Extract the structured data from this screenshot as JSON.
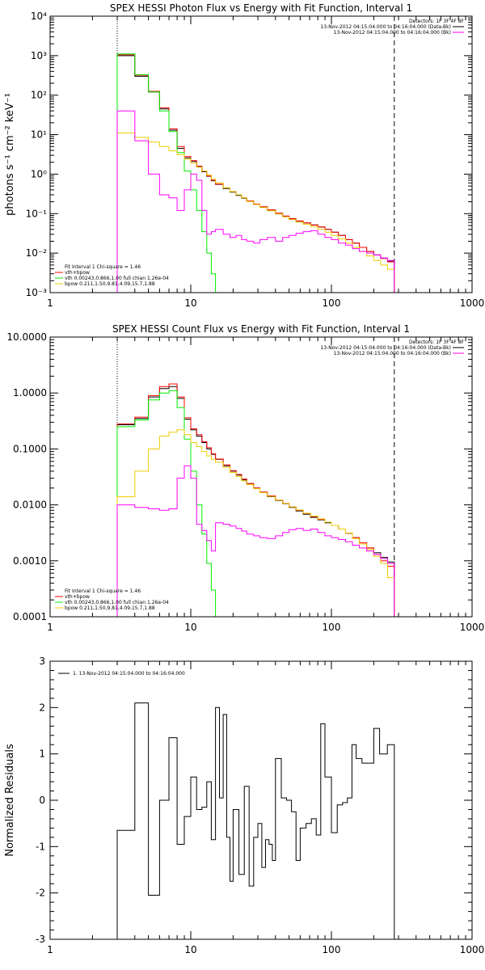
{
  "colors": {
    "total": "#ff0000",
    "vth": "#00ee00",
    "bpow": "#eecc00",
    "data": "#000000",
    "background": "#ff00ff"
  },
  "chart_data": [
    {
      "type": "line",
      "title": "SPEX HESSI Photon Flux vs Energy with Fit Function, Interval 1",
      "ylabel": "photons s⁻¹ cm⁻² keV⁻¹",
      "xlabel": "",
      "xscale": "log",
      "yscale": "log",
      "xlim": [
        1,
        1000
      ],
      "ylim": [
        0.001,
        10000
      ],
      "xticks": [
        "1",
        "10",
        "100",
        "1000"
      ],
      "yticks": [
        "10⁻³",
        "10⁻²",
        "10⁻¹",
        "10⁰",
        "10¹",
        "10²",
        "10³",
        "10⁴"
      ],
      "fit_range": [
        3,
        280
      ],
      "detector_text": "Detectors: 1F 3F 4F 8F",
      "legend_right": [
        {
          "label": "13-Nov-2012 04:15:04.000 to 04:16:04.000 (Data-Bk)",
          "series": "data"
        },
        {
          "label": "13-Nov-2012 04:15:04.000 to 04:16:04.000 (Bk)",
          "series": "background"
        }
      ],
      "legend_left": [
        {
          "label": "Fit Interval 1    Chi-square = 1.46",
          "series": null
        },
        {
          "label": "vth+bpow",
          "series": "total"
        },
        {
          "label": "vth 0.00243,0.866,1.00  full chian 1.26e-04",
          "series": "vth"
        },
        {
          "label": "bpow 0.211,1.50,9.81,4.09,15.7,1.88",
          "series": "bpow"
        }
      ],
      "energy_edges": [
        3,
        4,
        5,
        6,
        7,
        8,
        9,
        10,
        11,
        12,
        13,
        14,
        15,
        17,
        19,
        21,
        23,
        25,
        28,
        31,
        35,
        40,
        45,
        50,
        56,
        63,
        71,
        80,
        90,
        100,
        112,
        126,
        141,
        158,
        178,
        200,
        224,
        251,
        280
      ],
      "series": [
        {
          "key": "data",
          "values": [
            1000,
            300,
            120,
            45,
            13,
            4.5,
            2.6,
            2.1,
            1.55,
            1.15,
            0.88,
            0.68,
            0.55,
            0.43,
            0.35,
            0.29,
            0.245,
            0.205,
            0.17,
            0.145,
            0.12,
            0.1,
            0.085,
            0.073,
            0.064,
            0.058,
            0.052,
            0.046,
            0.04,
            0.034,
            0.028,
            0.022,
            0.018,
            0.014,
            0.011,
            0.009,
            0.0075,
            0.0063
          ]
        },
        {
          "key": "total",
          "values": [
            1050,
            320,
            125,
            48,
            14,
            5,
            2.8,
            2.2,
            1.6,
            1.2,
            0.9,
            0.7,
            0.56,
            0.45,
            0.36,
            0.3,
            0.25,
            0.21,
            0.175,
            0.15,
            0.125,
            0.103,
            0.087,
            0.075,
            0.065,
            0.058,
            0.052,
            0.046,
            0.04,
            0.034,
            0.028,
            0.022,
            0.018,
            0.014,
            0.011,
            0.009,
            0.0073,
            0.006
          ]
        },
        {
          "key": "vth",
          "values": [
            1100,
            330,
            120,
            40,
            12,
            3.5,
            1.2,
            0.4,
            0.12,
            0.035,
            0.01,
            0.003,
            0.001,
            0.0005
          ]
        },
        {
          "key": "bpow",
          "values": [
            11,
            8.5,
            6.5,
            5,
            3.9,
            3.1,
            2.4,
            1.9,
            1.5,
            1.2,
            0.95,
            0.75,
            0.6,
            0.45,
            0.36,
            0.3,
            0.25,
            0.205,
            0.17,
            0.142,
            0.118,
            0.098,
            0.083,
            0.071,
            0.061,
            0.054,
            0.047,
            0.04,
            0.034,
            0.028,
            0.023,
            0.018,
            0.014,
            0.011,
            0.0085,
            0.0065,
            0.005,
            0.0039
          ]
        },
        {
          "key": "background",
          "values": [
            40,
            7,
            1,
            0.3,
            0.25,
            0.12,
            0.4,
            1,
            0.7,
            0.12,
            0.03,
            0.035,
            0.04,
            0.03,
            0.025,
            0.028,
            0.022,
            0.02,
            0.018,
            0.022,
            0.025,
            0.02,
            0.025,
            0.028,
            0.032,
            0.035,
            0.037,
            0.03,
            0.025,
            0.022,
            0.018,
            0.016,
            0.013,
            0.011,
            0.01,
            0.009,
            0.0075,
            0.0065
          ]
        }
      ]
    },
    {
      "type": "line",
      "title": "SPEX HESSI Count Flux vs Energy with Fit Function, Interval 1",
      "ylabel": "",
      "xlabel": "",
      "xscale": "log",
      "yscale": "log",
      "xlim": [
        1,
        1000
      ],
      "ylim": [
        0.0001,
        10
      ],
      "xticks": [
        "1",
        "10",
        "100",
        "1000"
      ],
      "yticks": [
        "0.0001",
        "0.0010",
        "0.0100",
        "0.1000",
        "1.0000",
        "10.0000"
      ],
      "fit_range": [
        3,
        280
      ],
      "detector_text": "Detectors: 1F 3F 4F 8F",
      "legend_right": [
        {
          "label": "13-Nov-2012 04:15:04.000 to 04:16:04.000 (Data-Bk)",
          "series": "data"
        },
        {
          "label": "13-Nov-2012 04:15:04.000 to 04:16:04.000 (Bk)",
          "series": "background"
        }
      ],
      "legend_left": [
        {
          "label": "Fit Interval 1    Chi-square = 1.46",
          "series": null
        },
        {
          "label": "vth+bpow",
          "series": "total"
        },
        {
          "label": "vth 0.00243,0.866,1.00  full chian 1.26e-04",
          "series": "vth"
        },
        {
          "label": "bpow 0.211,1.50,9.81,4.09,15.7,1.88",
          "series": "bpow"
        }
      ],
      "energy_edges": [
        3,
        4,
        5,
        6,
        7,
        8,
        9,
        10,
        11,
        12,
        13,
        14,
        15,
        17,
        19,
        21,
        23,
        25,
        28,
        31,
        35,
        40,
        45,
        50,
        56,
        63,
        71,
        80,
        90,
        100,
        112,
        126,
        141,
        158,
        178,
        200,
        224,
        251,
        280
      ],
      "series": [
        {
          "key": "data",
          "values": [
            0.27,
            0.35,
            0.85,
            1.2,
            1.3,
            0.8,
            0.34,
            0.22,
            0.17,
            0.13,
            0.1,
            0.08,
            0.065,
            0.05,
            0.04,
            0.034,
            0.028,
            0.024,
            0.02,
            0.017,
            0.014,
            0.012,
            0.0105,
            0.009,
            0.0078,
            0.0068,
            0.006,
            0.0054,
            0.0048,
            0.0043,
            0.0037,
            0.0031,
            0.0026,
            0.0021,
            0.0017,
            0.0014,
            0.00115,
            0.00095
          ]
        },
        {
          "key": "total",
          "values": [
            0.28,
            0.37,
            0.9,
            1.3,
            1.45,
            0.85,
            0.36,
            0.23,
            0.18,
            0.135,
            0.105,
            0.082,
            0.066,
            0.052,
            0.041,
            0.035,
            0.029,
            0.024,
            0.02,
            0.017,
            0.0145,
            0.0122,
            0.0106,
            0.0092,
            0.008,
            0.007,
            0.0062,
            0.0055,
            0.0049,
            0.0043,
            0.0037,
            0.0031,
            0.0026,
            0.0021,
            0.0017,
            0.0013,
            0.001,
            0.0008
          ]
        },
        {
          "key": "vth",
          "values": [
            0.25,
            0.33,
            0.75,
            1.0,
            1.1,
            0.55,
            0.15,
            0.04,
            0.01,
            0.003,
            0.0009,
            0.0003,
            0.0001,
            1e-05
          ]
        },
        {
          "key": "bpow",
          "values": [
            0.014,
            0.04,
            0.1,
            0.17,
            0.2,
            0.22,
            0.18,
            0.13,
            0.11,
            0.09,
            0.075,
            0.065,
            0.058,
            0.047,
            0.038,
            0.032,
            0.027,
            0.023,
            0.0195,
            0.0166,
            0.0142,
            0.0122,
            0.0106,
            0.0092,
            0.0081,
            0.0071,
            0.0063,
            0.0056,
            0.0049,
            0.0043,
            0.0037,
            0.0031,
            0.0025,
            0.002,
            0.0016,
            0.0012,
            0.0009,
            0.0005
          ]
        },
        {
          "key": "background",
          "values": [
            0.01,
            0.009,
            0.0085,
            0.008,
            0.0085,
            0.03,
            0.05,
            0.03,
            0.0045,
            0.0035,
            0.0023,
            0.0015,
            0.0048,
            0.0045,
            0.0042,
            0.0038,
            0.0034,
            0.003,
            0.0028,
            0.0026,
            0.0025,
            0.0028,
            0.0032,
            0.0036,
            0.0038,
            0.0035,
            0.0037,
            0.0032,
            0.0028,
            0.0026,
            0.0024,
            0.0022,
            0.0019,
            0.0017,
            0.0015,
            0.0013,
            0.0011,
            0.0009
          ]
        }
      ]
    },
    {
      "type": "line",
      "title": "",
      "ylabel": "Normalized Residuals",
      "xlabel": "",
      "xscale": "log",
      "yscale": "linear",
      "xlim": [
        1,
        1000
      ],
      "ylim": [
        -3,
        3
      ],
      "xticks": [
        "1",
        "10",
        "100",
        "1000"
      ],
      "yticks": [
        "-3",
        "-2",
        "-1",
        "0",
        "1",
        "2",
        "3"
      ],
      "legend": [
        {
          "label": "1. 13-Nov-2012 04:15:04.000 to 04:16:04.000",
          "series": "residuals"
        }
      ],
      "energy_edges": [
        3,
        4,
        5,
        6,
        7,
        8,
        9,
        10,
        11,
        12,
        13,
        14,
        15,
        16,
        17,
        18,
        19,
        20,
        22,
        24,
        26,
        28,
        30,
        32,
        34,
        36,
        38,
        40,
        44,
        48,
        52,
        56,
        60,
        66,
        72,
        78,
        84,
        90,
        100,
        110,
        120,
        130,
        140,
        150,
        165,
        180,
        200,
        220,
        250,
        280
      ],
      "series": [
        {
          "key": "residuals",
          "values": [
            -0.65,
            2.1,
            -2.05,
            0.0,
            1.35,
            -0.95,
            -0.35,
            0.5,
            -0.2,
            -0.15,
            0.4,
            -0.85,
            2.0,
            0.05,
            1.85,
            -0.8,
            -1.75,
            -0.2,
            -1.6,
            0.3,
            -1.85,
            -0.8,
            -0.5,
            -1.45,
            -0.85,
            -0.95,
            -1.3,
            0.9,
            0.05,
            0.0,
            -0.25,
            -1.3,
            -0.6,
            -0.5,
            -0.4,
            -0.75,
            1.65,
            0.5,
            -0.7,
            -0.1,
            -0.05,
            0.05,
            1.2,
            0.9,
            0.8,
            0.8,
            1.55,
            1.0,
            1.2
          ]
        }
      ]
    }
  ]
}
